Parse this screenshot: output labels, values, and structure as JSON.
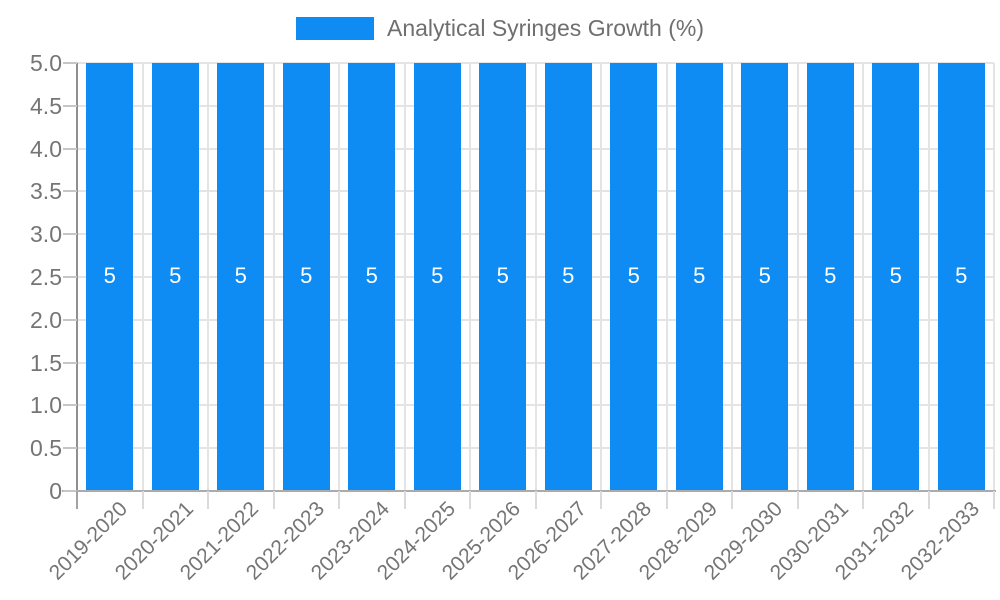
{
  "legend": {
    "label": "Analytical Syringes Growth (%)"
  },
  "colors": {
    "bar": "#0e8cf4",
    "bar_label": "#ffffff",
    "grid": "#e4e4e4",
    "axis_text": "#757575",
    "legend_text": "#6f6f6f"
  },
  "chart_data": {
    "type": "bar",
    "title": "",
    "legend_position": "top-center",
    "series_name": "Analytical Syringes Growth (%)",
    "categories": [
      "2019-2020",
      "2020-2021",
      "2021-2022",
      "2022-2023",
      "2023-2024",
      "2024-2025",
      "2025-2026",
      "2026-2027",
      "2027-2028",
      "2028-2029",
      "2029-2030",
      "2030-2031",
      "2031-2032",
      "2032-2033"
    ],
    "values": [
      5,
      5,
      5,
      5,
      5,
      5,
      5,
      5,
      5,
      5,
      5,
      5,
      5,
      5
    ],
    "bar_labels": [
      "5",
      "5",
      "5",
      "5",
      "5",
      "5",
      "5",
      "5",
      "5",
      "5",
      "5",
      "5",
      "5",
      "5"
    ],
    "xlabel": "",
    "ylabel": "",
    "ylim": [
      0,
      5
    ],
    "ytick_step": 0.5,
    "ytick_labels_top_to_bottom": [
      "5.0",
      "4.5",
      "4.0",
      "3.5",
      "3.0",
      "2.5",
      "2.0",
      "1.5",
      "1.0",
      "0.5",
      "0"
    ],
    "grid": true
  }
}
